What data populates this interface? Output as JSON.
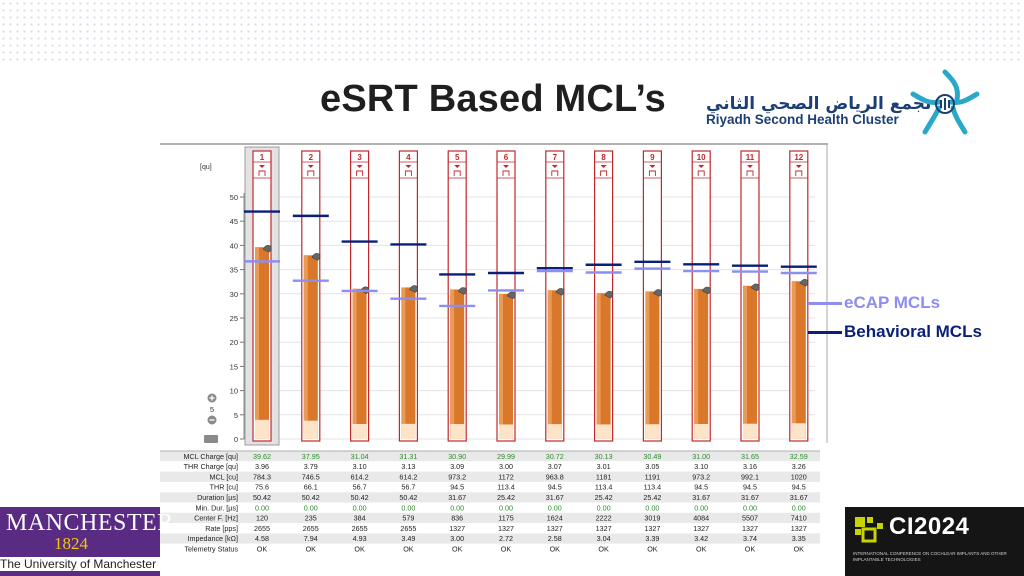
{
  "slide": {
    "title": "eSRT Based MCL’s",
    "logo_arabic": "تجمع الرياض الصحي الثاني",
    "logo_english": "Riyadh Second Health Cluster",
    "manchester_name": "MANCHESTER",
    "manchester_year": "1824",
    "manchester_sub": "The University of Manchester",
    "ci_title": "CI2024",
    "ci_subtitle": "INTERNATIONAL CONFERENCE ON COCHLEAR IMPLANTS AND OTHER IMPLANTABLE TECHNOLOGIES"
  },
  "legend": {
    "ecap_label": "eCAP MCLs",
    "behavioral_label": "Behavioral MCLs",
    "ecap_color": "#8c8ef0",
    "behavioral_color": "#0a1f7a"
  },
  "chart_data": {
    "type": "bar",
    "unit_label": "[qu]",
    "ylim": [
      0,
      50
    ],
    "yticks": [
      0,
      5,
      10,
      15,
      20,
      25,
      30,
      35,
      40,
      45,
      50
    ],
    "zoom_value": "5",
    "categories": [
      "1",
      "2",
      "3",
      "4",
      "5",
      "6",
      "7",
      "8",
      "9",
      "10",
      "11",
      "12"
    ],
    "series": [
      {
        "name": "MCL Charge",
        "values": [
          39.62,
          37.95,
          31.04,
          31.31,
          30.9,
          29.99,
          30.72,
          30.13,
          30.49,
          31.0,
          31.65,
          32.59
        ]
      },
      {
        "name": "eCAP MCLs",
        "values": [
          36.7,
          32.7,
          30.6,
          29.0,
          27.5,
          30.7,
          34.7,
          34.4,
          35.2,
          34.7,
          34.6,
          34.3
        ]
      },
      {
        "name": "Behavioral MCLs",
        "values": [
          47.0,
          46.1,
          40.8,
          40.2,
          34.0,
          34.3,
          35.3,
          36.0,
          36.6,
          36.1,
          35.8,
          35.6
        ]
      }
    ],
    "thr_values": [
      3.96,
      3.79,
      3.1,
      3.13,
      3.09,
      3.0,
      3.07,
      3.01,
      3.05,
      3.1,
      3.16,
      3.26
    ],
    "selected_channel": 0,
    "table": {
      "rows": [
        {
          "label": "MCL Charge [qu]",
          "values": [
            "39.62",
            "37.95",
            "31.04",
            "31.31",
            "30.90",
            "29.99",
            "30.72",
            "30.13",
            "30.49",
            "31.00",
            "31.65",
            "32.59"
          ],
          "color": "#2e8b2e"
        },
        {
          "label": "THR Charge [qu]",
          "values": [
            "3.96",
            "3.79",
            "3.10",
            "3.13",
            "3.09",
            "3.00",
            "3.07",
            "3.01",
            "3.05",
            "3.10",
            "3.16",
            "3.26"
          ]
        },
        {
          "label": "MCL [cu]",
          "values": [
            "784.3",
            "746.5",
            "614.2",
            "614.2",
            "973.2",
            "1172",
            "963.8",
            "1181",
            "1191",
            "973.2",
            "992.1",
            "1020"
          ]
        },
        {
          "label": "THR [cu]",
          "values": [
            "75.6",
            "66.1",
            "56.7",
            "56.7",
            "94.5",
            "113.4",
            "94.5",
            "113.4",
            "113.4",
            "94.5",
            "94.5",
            "94.5"
          ]
        },
        {
          "label": "Duration [µs]",
          "values": [
            "50.42",
            "50.42",
            "50.42",
            "50.42",
            "31.67",
            "25.42",
            "31.67",
            "25.42",
            "25.42",
            "31.67",
            "31.67",
            "31.67"
          ]
        },
        {
          "label": "Min. Dur. [µs]",
          "values": [
            "0.00",
            "0.00",
            "0.00",
            "0.00",
            "0.00",
            "0.00",
            "0.00",
            "0.00",
            "0.00",
            "0.00",
            "0.00",
            "0.00"
          ],
          "color": "#2e8b2e"
        },
        {
          "label": "Center F. [Hz]",
          "values": [
            "120",
            "235",
            "384",
            "579",
            "836",
            "1175",
            "1624",
            "2222",
            "3019",
            "4084",
            "5507",
            "7410"
          ]
        },
        {
          "label": "Rate [pps]",
          "values": [
            "2655",
            "2655",
            "2655",
            "2655",
            "1327",
            "1327",
            "1327",
            "1327",
            "1327",
            "1327",
            "1327",
            "1327"
          ]
        },
        {
          "label": "Impedance [kΩ]",
          "values": [
            "4.58",
            "7.94",
            "4.93",
            "3.49",
            "3.00",
            "2.72",
            "2.58",
            "3.04",
            "3.39",
            "3.42",
            "3.74",
            "3.35"
          ]
        },
        {
          "label": "Telemetry Status",
          "values": [
            "OK",
            "OK",
            "OK",
            "OK",
            "OK",
            "OK",
            "OK",
            "OK",
            "OK",
            "OK",
            "OK",
            "OK"
          ]
        }
      ]
    }
  }
}
